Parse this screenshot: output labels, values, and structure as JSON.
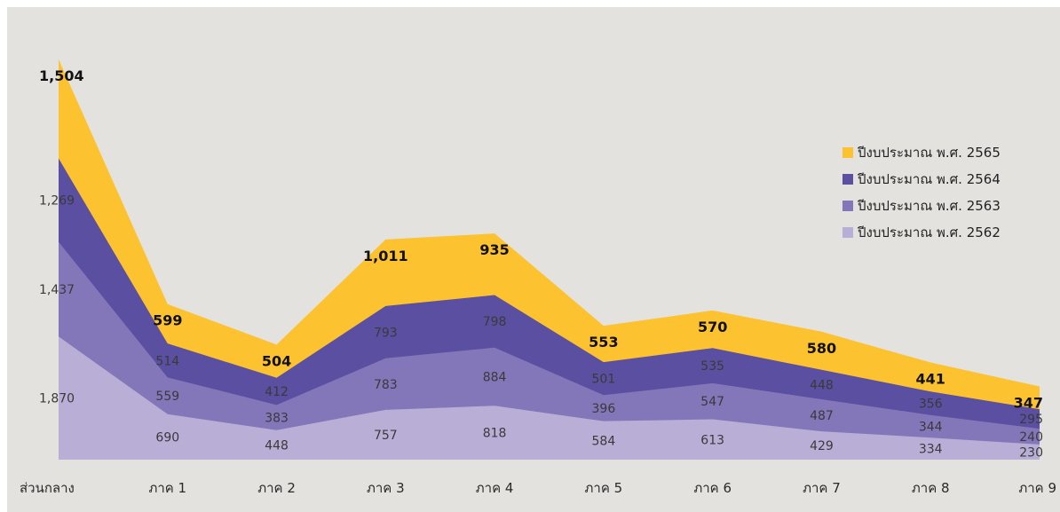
{
  "chart_data": {
    "type": "area",
    "stacked": true,
    "categories": [
      "ส่วนกลาง",
      "ภาค 1",
      "ภาค 2",
      "ภาค 3",
      "ภาค 4",
      "ภาค 5",
      "ภาค 6",
      "ภาค 7",
      "ภาค 8",
      "ภาค 9"
    ],
    "series": [
      {
        "name": "ปีงบประมาณ พ.ศ. 2562",
        "color": "#b9aed6",
        "values": [
          1870,
          690,
          448,
          757,
          818,
          584,
          613,
          429,
          334,
          230
        ]
      },
      {
        "name": "ปีงบประมาณ พ.ศ. 2563",
        "color": "#8377b9",
        "values": [
          1437,
          559,
          383,
          783,
          884,
          396,
          547,
          487,
          344,
          240
        ]
      },
      {
        "name": "ปีงบประมาณ พ.ศ. 2564",
        "color": "#5a4fa1",
        "values": [
          1269,
          514,
          412,
          793,
          798,
          501,
          535,
          448,
          356,
          295
        ]
      },
      {
        "name": "ปีงบประมาณ พ.ศ. 2565",
        "color": "#fcc22f",
        "values": [
          1504,
          599,
          504,
          1011,
          935,
          553,
          570,
          580,
          441,
          347
        ]
      }
    ],
    "legend": {
      "position": "right",
      "entries": [
        "ปีงบประมาณ พ.ศ. 2565",
        "ปีงบประมาณ พ.ศ. 2564",
        "ปีงบประมาณ พ.ศ. 2563",
        "ปีงบประมาณ พ.ศ. 2562"
      ]
    },
    "grid": false,
    "data_labels": true
  }
}
